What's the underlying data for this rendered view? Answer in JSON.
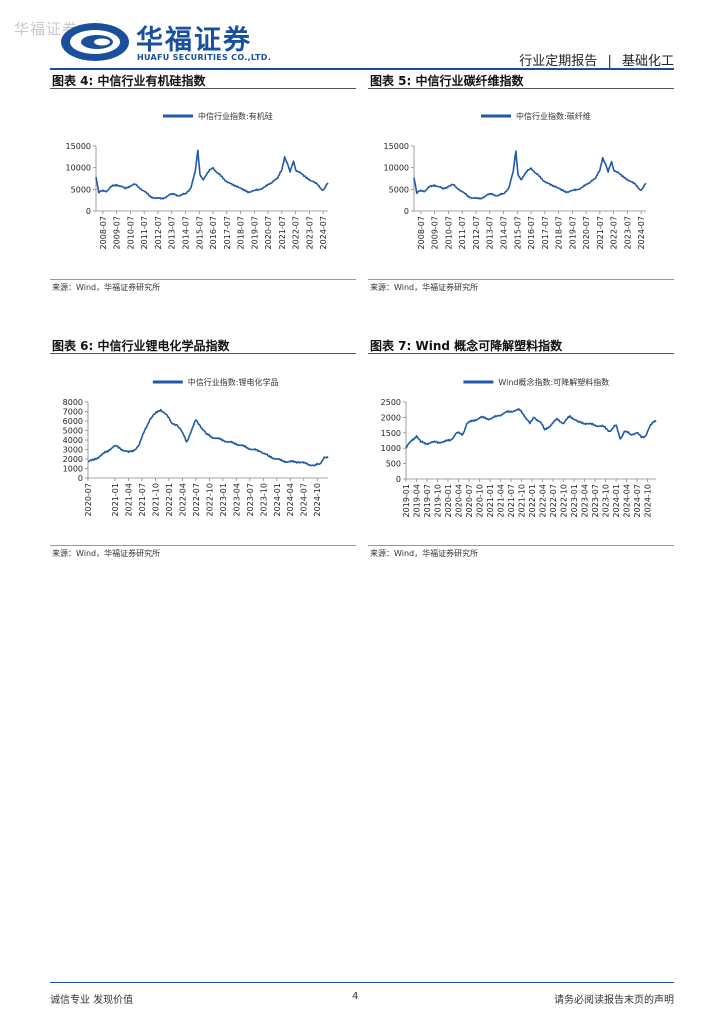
{
  "watermark": "华福证券",
  "brand": {
    "name_cn": "华福证券",
    "name_en": "HUAFU SECURITIES CO.,LTD."
  },
  "header": {
    "report_type": "行业定期报告",
    "separator": "|",
    "sector": "基础化工"
  },
  "colors": {
    "brand_blue": "#1a4f9c",
    "series_blue": "#1f5aa6"
  },
  "figures": [
    {
      "title": "图表 4:  中信行业有机硅指数",
      "source": "来源：Wind，华福证券研究所",
      "chart_data": {
        "type": "line",
        "legend": "中信行业指数:有机硅",
        "legend_position": "top",
        "ylim": [
          0,
          15000
        ],
        "yticks": [
          0,
          5000,
          10000,
          15000
        ],
        "xticks": [
          "2008-07",
          "2009-07",
          "2010-07",
          "2011-07",
          "2012-07",
          "2013-07",
          "2014-07",
          "2015-07",
          "2016-07",
          "2017-07",
          "2018-07",
          "2019-07",
          "2020-07",
          "2021-07",
          "2022-07",
          "2023-07",
          "2024-07"
        ],
        "x_start": 2008.0,
        "x_end": 2024.85,
        "points": [
          [
            2008.0,
            7800
          ],
          [
            2008.2,
            4200
          ],
          [
            2008.5,
            4800
          ],
          [
            2008.8,
            4600
          ],
          [
            2009.1,
            5600
          ],
          [
            2009.5,
            6100
          ],
          [
            2009.8,
            5700
          ],
          [
            2010.1,
            5200
          ],
          [
            2010.5,
            5800
          ],
          [
            2010.8,
            6200
          ],
          [
            2011.1,
            5500
          ],
          [
            2011.5,
            4600
          ],
          [
            2011.9,
            3400
          ],
          [
            2012.3,
            3000
          ],
          [
            2012.7,
            2800
          ],
          [
            2013.0,
            3100
          ],
          [
            2013.3,
            3700
          ],
          [
            2013.7,
            3900
          ],
          [
            2014.1,
            3500
          ],
          [
            2014.5,
            4000
          ],
          [
            2014.9,
            5400
          ],
          [
            2015.2,
            9000
          ],
          [
            2015.4,
            14000
          ],
          [
            2015.55,
            8500
          ],
          [
            2015.8,
            7200
          ],
          [
            2016.0,
            8200
          ],
          [
            2016.3,
            9600
          ],
          [
            2016.5,
            10000
          ],
          [
            2016.8,
            8800
          ],
          [
            2017.1,
            8000
          ],
          [
            2017.5,
            6800
          ],
          [
            2017.9,
            6000
          ],
          [
            2018.3,
            5700
          ],
          [
            2018.7,
            4800
          ],
          [
            2019.1,
            4400
          ],
          [
            2019.5,
            4700
          ],
          [
            2019.9,
            5000
          ],
          [
            2020.3,
            5600
          ],
          [
            2020.6,
            6200
          ],
          [
            2020.9,
            7000
          ],
          [
            2021.2,
            7600
          ],
          [
            2021.5,
            9500
          ],
          [
            2021.7,
            12500
          ],
          [
            2021.9,
            11000
          ],
          [
            2022.1,
            9000
          ],
          [
            2022.35,
            11500
          ],
          [
            2022.5,
            9500
          ],
          [
            2022.8,
            9000
          ],
          [
            2023.1,
            8000
          ],
          [
            2023.5,
            7300
          ],
          [
            2023.9,
            6500
          ],
          [
            2024.2,
            5800
          ],
          [
            2024.45,
            4800
          ],
          [
            2024.6,
            5200
          ],
          [
            2024.85,
            6500
          ]
        ]
      }
    },
    {
      "title": "图表 5:  中信行业碳纤维指数",
      "source": "来源：Wind，华福证券研究所",
      "chart_data": {
        "type": "line",
        "legend": "中信行业指数:碳纤维",
        "legend_position": "top",
        "ylim": [
          0,
          15000
        ],
        "yticks": [
          0,
          5000,
          10000,
          15000
        ],
        "xticks": [
          "2008-07",
          "2009-07",
          "2010-07",
          "2011-07",
          "2012-07",
          "2013-07",
          "2014-07",
          "2015-07",
          "2016-07",
          "2017-07",
          "2018-07",
          "2019-07",
          "2020-07",
          "2021-07",
          "2022-07",
          "2023-07",
          "2024-07"
        ],
        "x_start": 2008.0,
        "x_end": 2024.85,
        "points": [
          [
            2008.0,
            7700
          ],
          [
            2008.2,
            4100
          ],
          [
            2008.5,
            4800
          ],
          [
            2008.8,
            4600
          ],
          [
            2009.1,
            5500
          ],
          [
            2009.5,
            6000
          ],
          [
            2009.8,
            5600
          ],
          [
            2010.1,
            5100
          ],
          [
            2010.5,
            5700
          ],
          [
            2010.8,
            6100
          ],
          [
            2011.1,
            5400
          ],
          [
            2011.5,
            4500
          ],
          [
            2011.9,
            3400
          ],
          [
            2012.3,
            3000
          ],
          [
            2012.7,
            2800
          ],
          [
            2013.0,
            3100
          ],
          [
            2013.3,
            3700
          ],
          [
            2013.7,
            3900
          ],
          [
            2014.1,
            3500
          ],
          [
            2014.5,
            4000
          ],
          [
            2014.9,
            5400
          ],
          [
            2015.2,
            9000
          ],
          [
            2015.4,
            13800
          ],
          [
            2015.55,
            8500
          ],
          [
            2015.8,
            7200
          ],
          [
            2016.0,
            8200
          ],
          [
            2016.3,
            9500
          ],
          [
            2016.5,
            9900
          ],
          [
            2016.8,
            8800
          ],
          [
            2017.1,
            8000
          ],
          [
            2017.5,
            6800
          ],
          [
            2017.9,
            6000
          ],
          [
            2018.3,
            5700
          ],
          [
            2018.7,
            4800
          ],
          [
            2019.1,
            4400
          ],
          [
            2019.5,
            4700
          ],
          [
            2019.9,
            5000
          ],
          [
            2020.3,
            5600
          ],
          [
            2020.6,
            6200
          ],
          [
            2020.9,
            7000
          ],
          [
            2021.2,
            7600
          ],
          [
            2021.5,
            9400
          ],
          [
            2021.7,
            12300
          ],
          [
            2021.9,
            11000
          ],
          [
            2022.1,
            9000
          ],
          [
            2022.35,
            11400
          ],
          [
            2022.5,
            9500
          ],
          [
            2022.8,
            9000
          ],
          [
            2023.1,
            8000
          ],
          [
            2023.5,
            7300
          ],
          [
            2023.9,
            6500
          ],
          [
            2024.2,
            5800
          ],
          [
            2024.45,
            4800
          ],
          [
            2024.6,
            5200
          ],
          [
            2024.85,
            6400
          ]
        ]
      }
    },
    {
      "title": "图表 6:  中信行业锂电化学品指数",
      "source": "来源：Wind，华福证券研究所",
      "chart_data": {
        "type": "line",
        "legend": "中信行业指数:锂电化学品",
        "legend_position": "top",
        "ylim": [
          0,
          8000
        ],
        "yticks": [
          0,
          1000,
          2000,
          3000,
          4000,
          5000,
          6000,
          7000,
          8000
        ],
        "xticks": [
          "2020-07",
          "2021-01",
          "2021-04",
          "2021-07",
          "2021-10",
          "2022-01",
          "2022-04",
          "2022-07",
          "2022-10",
          "2023-01",
          "2023-04",
          "2023-07",
          "2023-10",
          "2024-01",
          "2024-04",
          "2024-07",
          "2024-10"
        ],
        "x_start": 2020.5,
        "x_end": 2024.95,
        "points": [
          [
            2020.5,
            1700
          ],
          [
            2020.6,
            1900
          ],
          [
            2020.75,
            2400
          ],
          [
            2020.9,
            3000
          ],
          [
            2021.0,
            3400
          ],
          [
            2021.1,
            3100
          ],
          [
            2021.25,
            2700
          ],
          [
            2021.35,
            2900
          ],
          [
            2021.45,
            3500
          ],
          [
            2021.55,
            5000
          ],
          [
            2021.65,
            6200
          ],
          [
            2021.75,
            6800
          ],
          [
            2021.85,
            7200
          ],
          [
            2021.95,
            6700
          ],
          [
            2022.05,
            5800
          ],
          [
            2022.15,
            5600
          ],
          [
            2022.25,
            4800
          ],
          [
            2022.33,
            3800
          ],
          [
            2022.42,
            5000
          ],
          [
            2022.5,
            6100
          ],
          [
            2022.58,
            5500
          ],
          [
            2022.7,
            4600
          ],
          [
            2022.85,
            4200
          ],
          [
            2023.0,
            4000
          ],
          [
            2023.1,
            3800
          ],
          [
            2023.25,
            3600
          ],
          [
            2023.4,
            3300
          ],
          [
            2023.55,
            3000
          ],
          [
            2023.7,
            2800
          ],
          [
            2023.85,
            2300
          ],
          [
            2024.0,
            2000
          ],
          [
            2024.1,
            1800
          ],
          [
            2024.25,
            1700
          ],
          [
            2024.4,
            1700
          ],
          [
            2024.55,
            1500
          ],
          [
            2024.7,
            1300
          ],
          [
            2024.8,
            1500
          ],
          [
            2024.88,
            2200
          ],
          [
            2024.95,
            2100
          ]
        ]
      }
    },
    {
      "title": "图表 7:  Wind 概念可降解塑料指数",
      "source": "来源：Wind，华福证券研究所",
      "chart_data": {
        "type": "line",
        "legend": "Wind概念指数:可降解塑料指数",
        "legend_position": "top",
        "ylim": [
          0,
          2500
        ],
        "yticks": [
          0,
          500,
          1000,
          1500,
          2000,
          2500
        ],
        "xticks": [
          "2019-01",
          "2019-04",
          "2019-07",
          "2019-10",
          "2020-01",
          "2020-04",
          "2020-07",
          "2020-10",
          "2021-01",
          "2021-04",
          "2021-07",
          "2021-10",
          "2022-01",
          "2022-04",
          "2022-07",
          "2022-10",
          "2023-01",
          "2023-04",
          "2023-07",
          "2023-10",
          "2024-01",
          "2024-04",
          "2024-07",
          "2024-10"
        ],
        "x_start": 2019.0,
        "x_end": 2024.95,
        "points": [
          [
            2019.0,
            1000
          ],
          [
            2019.1,
            1200
          ],
          [
            2019.25,
            1400
          ],
          [
            2019.35,
            1200
          ],
          [
            2019.5,
            1150
          ],
          [
            2019.7,
            1200
          ],
          [
            2019.9,
            1200
          ],
          [
            2020.1,
            1300
          ],
          [
            2020.2,
            1500
          ],
          [
            2020.35,
            1450
          ],
          [
            2020.45,
            1800
          ],
          [
            2020.6,
            1900
          ],
          [
            2020.8,
            2000
          ],
          [
            2021.0,
            1950
          ],
          [
            2021.2,
            2050
          ],
          [
            2021.35,
            2150
          ],
          [
            2021.5,
            2200
          ],
          [
            2021.7,
            2250
          ],
          [
            2021.8,
            2100
          ],
          [
            2021.95,
            1800
          ],
          [
            2022.05,
            2000
          ],
          [
            2022.2,
            1850
          ],
          [
            2022.3,
            1600
          ],
          [
            2022.45,
            1750
          ],
          [
            2022.6,
            1950
          ],
          [
            2022.75,
            1800
          ],
          [
            2022.9,
            2050
          ],
          [
            2023.1,
            1850
          ],
          [
            2023.3,
            1800
          ],
          [
            2023.5,
            1750
          ],
          [
            2023.7,
            1700
          ],
          [
            2023.85,
            1550
          ],
          [
            2024.0,
            1750
          ],
          [
            2024.1,
            1300
          ],
          [
            2024.2,
            1550
          ],
          [
            2024.35,
            1450
          ],
          [
            2024.5,
            1500
          ],
          [
            2024.6,
            1350
          ],
          [
            2024.7,
            1400
          ],
          [
            2024.8,
            1700
          ],
          [
            2024.9,
            1850
          ],
          [
            2024.95,
            1900
          ]
        ]
      }
    }
  ],
  "footer": {
    "left": "诚信专业  发现价值",
    "page": "4",
    "right": "请务必阅读报告末页的声明"
  }
}
